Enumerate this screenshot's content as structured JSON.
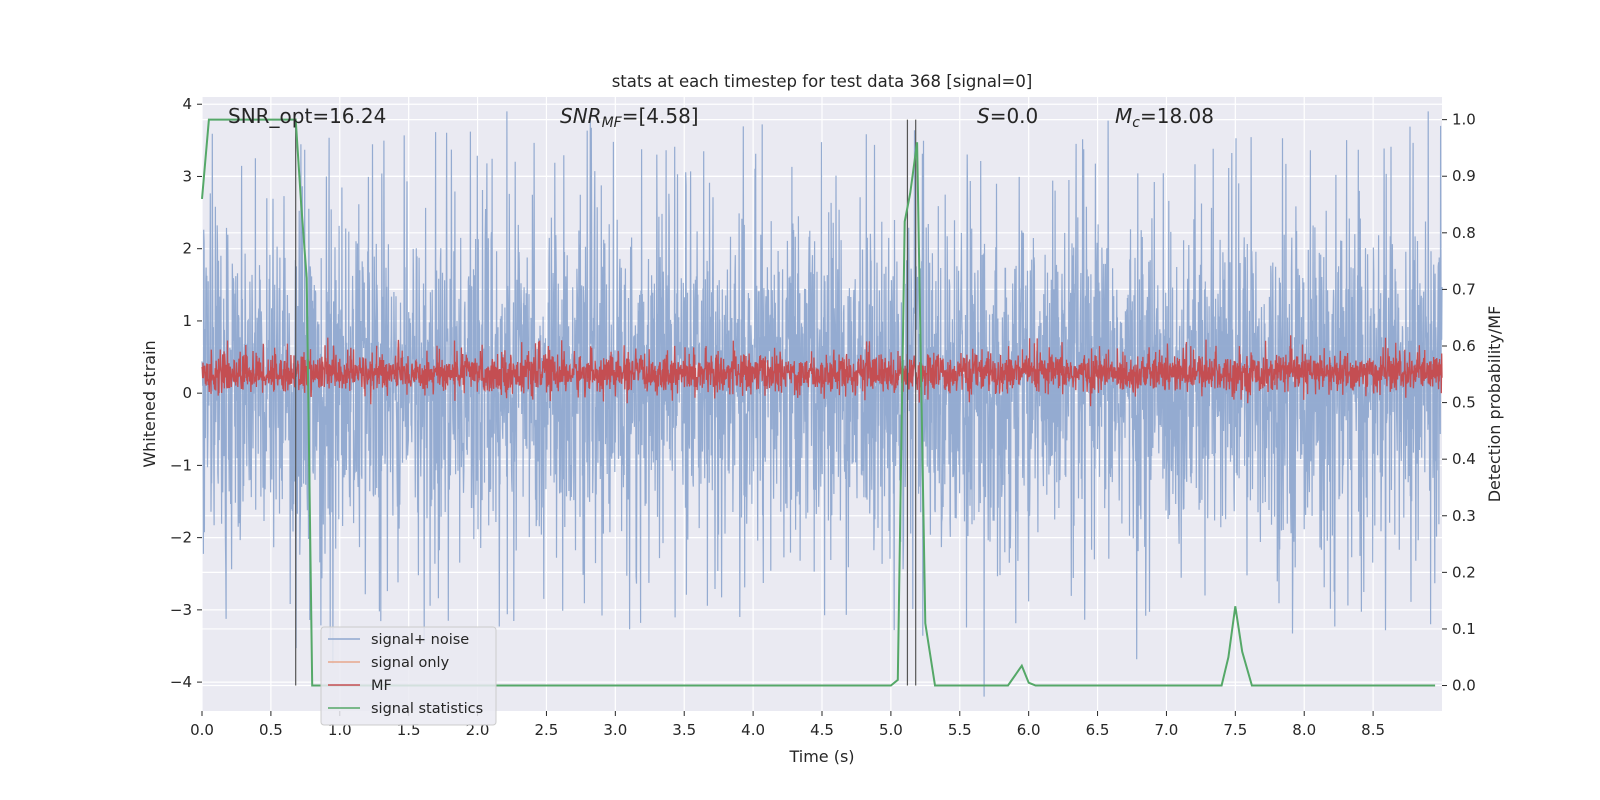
{
  "chart_data": {
    "type": "line",
    "title": "stats at each timestep for test data 368 [signal=0]",
    "xlabel": "Time (s)",
    "ylabel": "Whitened strain",
    "y2label": "Detection probability/MF",
    "xlim": [
      0.0,
      9.0
    ],
    "ylim": [
      -4.4,
      4.1
    ],
    "y2lim": [
      -0.045,
      1.04
    ],
    "xticks": [
      0.0,
      0.5,
      1.0,
      1.5,
      2.0,
      2.5,
      3.0,
      3.5,
      4.0,
      4.5,
      5.0,
      5.5,
      6.0,
      6.5,
      7.0,
      7.5,
      8.0,
      8.5
    ],
    "xtick_labels": [
      "0.0",
      "0.5",
      "1.0",
      "1.5",
      "2.0",
      "2.5",
      "3.0",
      "3.5",
      "4.0",
      "4.5",
      "5.0",
      "5.5",
      "6.0",
      "6.5",
      "7.0",
      "7.5",
      "8.0",
      "8.5"
    ],
    "yticks": [
      4,
      3,
      2,
      1,
      0,
      -1,
      -2,
      -3,
      -4
    ],
    "ytick_labels": [
      "4",
      "3",
      "2",
      "1",
      "0",
      "−1",
      "−2",
      "−3",
      "−4"
    ],
    "y2ticks": [
      1.0,
      0.9,
      0.8,
      0.7,
      0.6,
      0.5,
      0.4,
      0.3,
      0.2,
      0.1,
      0.0
    ],
    "y2tick_labels": [
      "1.0",
      "0.9",
      "0.8",
      "0.7",
      "0.6",
      "0.5",
      "0.4",
      "0.3",
      "0.2",
      "0.1",
      "0.0"
    ],
    "grid": true,
    "legend_placement": "lower-left",
    "annotations": {
      "snr_opt": "SNR_opt=16.24",
      "snr_mf_base": "SNR",
      "snr_mf_sub": "MF",
      "snr_mf_tail": "=[4.58]",
      "s_label": "S",
      "s_tail": "=0.0",
      "mc_base": "M",
      "mc_sub": "c",
      "mc_tail": "=18.08"
    },
    "vlines_x": [
      0.68,
      5.12,
      5.18
    ],
    "series": [
      {
        "name": "signal+ noise",
        "color": "#8fa8cf",
        "kind": "noise",
        "axis": "left",
        "typical_range": [
          -2.6,
          2.9
        ]
      },
      {
        "name": "signal only",
        "color": "#e8a88c",
        "kind": "flat",
        "axis": "left",
        "values": []
      },
      {
        "name": "MF",
        "color": "#c44e52",
        "kind": "noise",
        "axis": "left",
        "typical_range": [
          0.0,
          0.55
        ]
      },
      {
        "name": "signal statistics",
        "color": "#55a868",
        "kind": "line",
        "axis": "right",
        "x": [
          0.0,
          0.05,
          0.1,
          0.2,
          0.4,
          0.6,
          0.68,
          0.72,
          0.76,
          0.8,
          0.85,
          1.0,
          2.0,
          3.0,
          4.0,
          4.5,
          5.0,
          5.05,
          5.1,
          5.14,
          5.19,
          5.25,
          5.32,
          5.4,
          5.6,
          5.85,
          5.95,
          6.0,
          6.05,
          6.5,
          7.0,
          7.4,
          7.45,
          7.5,
          7.55,
          7.62,
          7.7,
          8.0,
          8.5,
          8.95
        ],
        "values": [
          0.86,
          1.0,
          1.0,
          1.0,
          1.0,
          1.0,
          1.0,
          0.85,
          0.72,
          0.0,
          0.0,
          0.0,
          0.0,
          0.0,
          0.0,
          0.0,
          0.0,
          0.01,
          0.82,
          0.87,
          0.96,
          0.11,
          0.0,
          0.0,
          0.0,
          0.0,
          0.035,
          0.005,
          0.0,
          0.0,
          0.0,
          0.0,
          0.05,
          0.14,
          0.06,
          0.0,
          0.0,
          0.0,
          0.0,
          0.0
        ]
      }
    ]
  }
}
